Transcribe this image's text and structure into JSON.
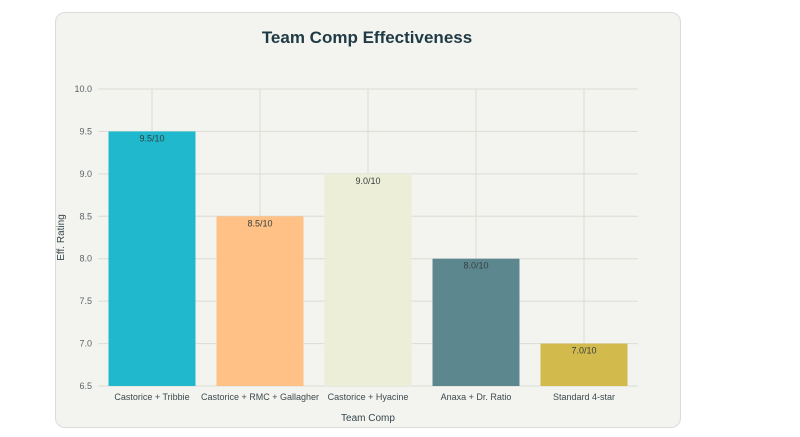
{
  "chart_data": {
    "type": "bar",
    "title": "Team Comp Effectiveness",
    "xlabel": "Team Comp",
    "ylabel": "Eff. Rating",
    "ylim": [
      6.5,
      10.0
    ],
    "yticks": [
      "6.5",
      "7.0",
      "7.5",
      "8.0",
      "8.5",
      "9.0",
      "9.5",
      "10.0"
    ],
    "categories": [
      "Castorice + Tribbie",
      "Castorice + RMC + Gallagher",
      "Castorice + Hyacine",
      "Anaxa + Dr. Ratio",
      "Standard 4-star"
    ],
    "values": [
      9.5,
      8.5,
      9.0,
      8.0,
      7.0
    ],
    "data_labels": [
      "9.5/10",
      "8.5/10",
      "9.0/10",
      "8.0/10",
      "7.0/10"
    ],
    "colors": [
      "#1fb8cd",
      "#ffc185",
      "#eceed8",
      "#5d878f",
      "#d2ba4c"
    ],
    "grid": true
  }
}
